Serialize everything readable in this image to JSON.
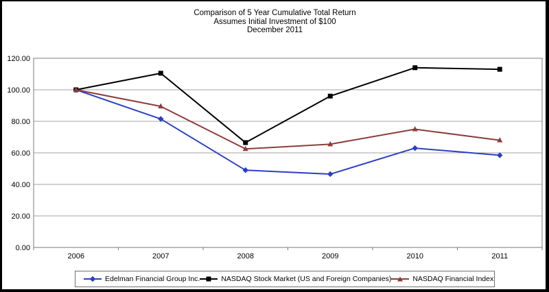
{
  "chart_data": {
    "type": "line",
    "title": "Comparison of 5 Year Cumulative Total Return",
    "subtitle1": "Assumes Initial Investment of $100",
    "subtitle2": "December 2011",
    "categories": [
      "2006",
      "2007",
      "2008",
      "2009",
      "2010",
      "2011"
    ],
    "ylim": [
      0,
      120
    ],
    "y_ticks": [
      {
        "value": 0,
        "label": "0.00"
      },
      {
        "value": 20,
        "label": "20.00"
      },
      {
        "value": 40,
        "label": "40.00"
      },
      {
        "value": 60,
        "label": "60.00"
      },
      {
        "value": 80,
        "label": "80.00"
      },
      {
        "value": 100,
        "label": "100.00"
      },
      {
        "value": 120,
        "label": "120.00"
      }
    ],
    "grid": true,
    "legend_position": "bottom",
    "gridline_color": "#a3a3a3",
    "plot_border_color": "#7a7a7a",
    "series": [
      {
        "id": "edelman",
        "name": "Edelman Financial Group Inc.",
        "color": "#2b3fc4",
        "marker": "diamond",
        "values": [
          100,
          81.5,
          49,
          46.5,
          63,
          58.5
        ]
      },
      {
        "id": "nasdaq-stock",
        "name": "NASDAQ Stock Market (US and Foreign Companies)",
        "color": "#000000",
        "marker": "square",
        "values": [
          100,
          110.5,
          66.5,
          96,
          114,
          113
        ]
      },
      {
        "id": "nasdaq-financial",
        "name": "NASDAQ Financial Index",
        "color": "#8e3b3b",
        "marker": "triangle",
        "values": [
          100,
          89.5,
          62.5,
          65.5,
          75,
          68
        ]
      }
    ]
  }
}
